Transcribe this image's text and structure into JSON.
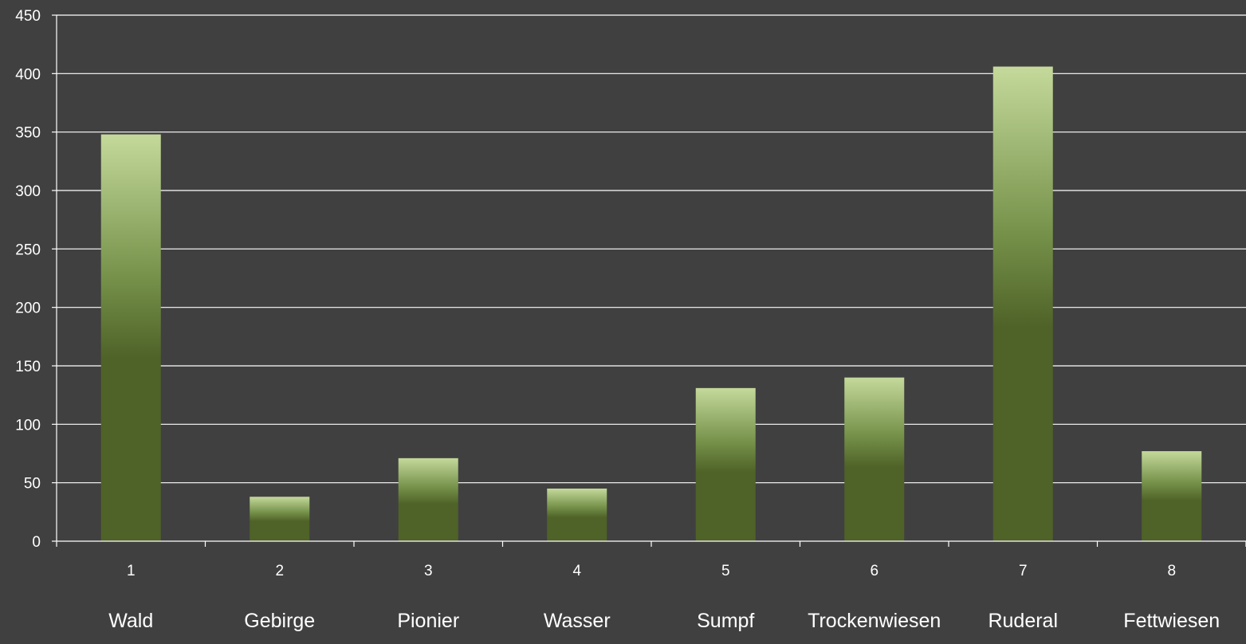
{
  "chart_data": {
    "type": "bar",
    "title": "",
    "xlabel": "",
    "ylabel": "",
    "categories": [
      "1",
      "2",
      "3",
      "4",
      "5",
      "6",
      "7",
      "8"
    ],
    "category_names": [
      "Wald",
      "Gebirge",
      "Pionier",
      "Wasser",
      "Sumpf",
      "Trockenwiesen",
      "Ruderal",
      "Fettwiesen"
    ],
    "values": [
      348,
      38,
      71,
      45,
      131,
      140,
      406,
      77
    ],
    "ylim": [
      0,
      450
    ],
    "yticks": [
      0,
      50,
      100,
      150,
      200,
      250,
      300,
      350,
      400,
      450
    ],
    "grid": true,
    "legend": "none",
    "colors": {
      "background": "#404040",
      "grid": "#ffffff",
      "axis": "#ffffff",
      "text": "#ffffff",
      "bar_top": "#c4d99b",
      "bar_mid": "#76924a",
      "bar_bottom": "#4f6228"
    }
  }
}
